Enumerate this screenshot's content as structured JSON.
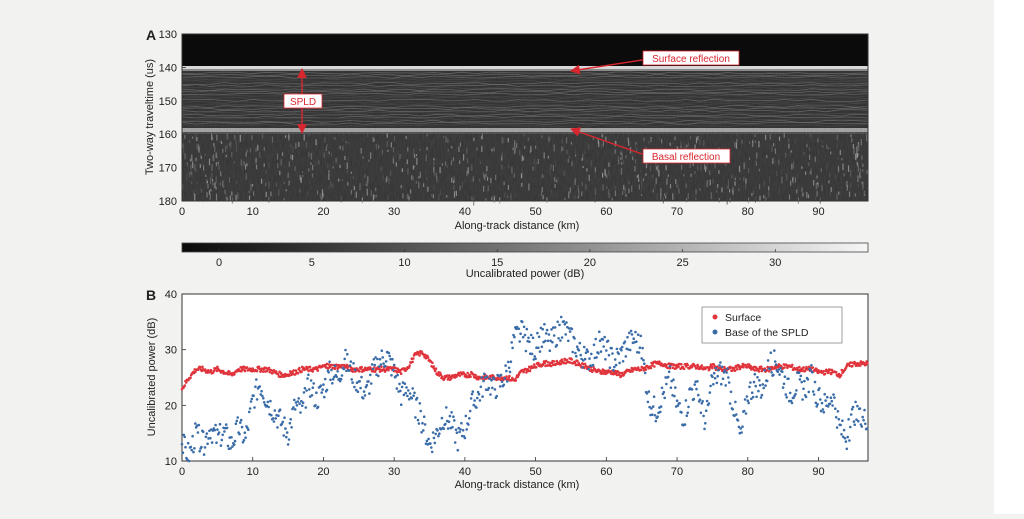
{
  "figure": {
    "panel_a": {
      "letter": "A",
      "type": "heatmap",
      "ylabel": "Two-way traveltime (us)",
      "xlabel": "Along-track distance (km)",
      "x_ticks": [
        0,
        10,
        20,
        30,
        40,
        50,
        60,
        70,
        80,
        90
      ],
      "y_ticks": [
        130,
        140,
        150,
        160,
        170,
        180
      ],
      "xlim": [
        0,
        97
      ],
      "ylim": [
        130,
        180
      ],
      "surface_time": 141,
      "basal_time": 159,
      "annotations": {
        "surface": "Surface reflection",
        "basal": "Basal reflection",
        "spld": "SPLD"
      },
      "annotation_color": "#d8262e"
    },
    "colorbar": {
      "label": "Uncalibrated power (dB)",
      "ticks": [
        0,
        5,
        10,
        15,
        20,
        25,
        30
      ],
      "range": [
        -2,
        35
      ]
    },
    "panel_b": {
      "letter": "B",
      "type": "scatter",
      "xlabel": "Along-track distance (km)",
      "ylabel": "Uncalibrated power (dB)",
      "x_ticks": [
        0,
        10,
        20,
        30,
        40,
        50,
        60,
        70,
        80,
        90
      ],
      "y_ticks": [
        10,
        20,
        30,
        40
      ],
      "xlim": [
        0,
        97
      ],
      "ylim": [
        10,
        40
      ],
      "legend": [
        {
          "label": "Surface",
          "color": "#e0343c"
        },
        {
          "label": "Base of the SPLD",
          "color": "#3a6ca8"
        }
      ]
    }
  },
  "chart_data": [
    {
      "type": "heatmap",
      "title": "",
      "xlabel": "Along-track distance (km)",
      "ylabel": "Two-way traveltime (us)",
      "xlim": [
        0,
        97
      ],
      "ylim": [
        130,
        180
      ],
      "features": [
        {
          "name": "Surface reflection",
          "time_us": 141
        },
        {
          "name": "Basal reflection",
          "time_us": 159
        }
      ],
      "colorbar": {
        "label": "Uncalibrated power (dB)",
        "range": [
          -2,
          35
        ]
      }
    },
    {
      "type": "scatter",
      "xlabel": "Along-track distance (km)",
      "ylabel": "Uncalibrated power (dB)",
      "xlim": [
        0,
        97
      ],
      "ylim": [
        10,
        40
      ],
      "series": [
        {
          "name": "Surface",
          "color": "#e0343c",
          "x": [
            0,
            1,
            2,
            3,
            4,
            5,
            6,
            7,
            8,
            9,
            10,
            11,
            12,
            13,
            14,
            15,
            16,
            17,
            18,
            19,
            20,
            21,
            22,
            23,
            24,
            25,
            26,
            27,
            28,
            29,
            30,
            31,
            32,
            33,
            34,
            35,
            36,
            37,
            38,
            39,
            40,
            41,
            42,
            43,
            44,
            45,
            46,
            47,
            48,
            49,
            50,
            51,
            52,
            53,
            54,
            55,
            56,
            57,
            58,
            59,
            60,
            61,
            62,
            63,
            64,
            65,
            66,
            67,
            68,
            69,
            70,
            71,
            72,
            73,
            74,
            75,
            76,
            77,
            78,
            79,
            80,
            81,
            82,
            83,
            84,
            85,
            86,
            87,
            88,
            89,
            90,
            91,
            92,
            93,
            94,
            95,
            96,
            97
          ],
          "values": [
            23,
            25,
            26.5,
            26.5,
            26,
            26.5,
            26,
            25.5,
            26.5,
            26.5,
            26.5,
            26.5,
            26.5,
            26,
            25.5,
            25.5,
            26,
            26.5,
            26.5,
            26.5,
            27,
            27,
            27,
            27,
            26.5,
            26.5,
            26.5,
            26.5,
            26.5,
            26.5,
            26.5,
            26,
            27,
            29,
            29.5,
            28,
            26,
            25,
            25,
            25.5,
            25.5,
            25.5,
            25,
            25,
            25,
            25,
            25,
            24.5,
            26,
            26.5,
            27,
            27.5,
            27.5,
            27.5,
            28,
            28,
            27.5,
            27,
            26.5,
            26,
            26,
            26,
            25.5,
            26,
            26.5,
            26.5,
            27,
            27.5,
            27.5,
            27,
            27,
            27,
            27,
            27,
            26.5,
            27,
            26.5,
            26.5,
            26.5,
            27,
            27,
            26.5,
            26.5,
            26.5,
            27,
            27,
            27,
            26.5,
            26.5,
            26.5,
            26,
            26,
            26,
            25.5,
            27,
            27.5,
            27.5,
            27.5
          ]
        },
        {
          "name": "Base of the SPLD",
          "color": "#3a6ca8",
          "x": [
            0,
            1,
            2,
            3,
            4,
            5,
            6,
            7,
            8,
            9,
            10,
            11,
            12,
            13,
            14,
            15,
            16,
            17,
            18,
            19,
            20,
            21,
            22,
            23,
            24,
            25,
            26,
            27,
            28,
            29,
            30,
            31,
            32,
            33,
            34,
            35,
            36,
            37,
            38,
            39,
            40,
            41,
            42,
            43,
            44,
            45,
            46,
            47,
            48,
            49,
            50,
            51,
            52,
            53,
            54,
            55,
            56,
            57,
            58,
            59,
            60,
            61,
            62,
            63,
            64,
            65,
            66,
            67,
            68,
            69,
            70,
            71,
            72,
            73,
            74,
            75,
            76,
            77,
            78,
            79,
            80,
            81,
            82,
            83,
            84,
            85,
            86,
            87,
            88,
            89,
            90,
            91,
            92,
            93,
            94,
            95,
            96,
            97
          ],
          "values": [
            13,
            11,
            15,
            13,
            16,
            14,
            15,
            13,
            16,
            14,
            21,
            24,
            21,
            19,
            17,
            15,
            20,
            19,
            24,
            21,
            23,
            26,
            25,
            28,
            26,
            24,
            22,
            26,
            28,
            29,
            26,
            22,
            23,
            20,
            17,
            13,
            15,
            18,
            17,
            14,
            16,
            20,
            22,
            25,
            23,
            24,
            26,
            32,
            33,
            31,
            30,
            33,
            31,
            33,
            34,
            32,
            30,
            28,
            29,
            31,
            30,
            28,
            29,
            31,
            32,
            30,
            21,
            19,
            22,
            25,
            20,
            18,
            23,
            22,
            17,
            24,
            26,
            25,
            20,
            14,
            22,
            24,
            23,
            27,
            28,
            25,
            22,
            24,
            23,
            25,
            21,
            20,
            22,
            16,
            14,
            19,
            17,
            18
          ]
        }
      ]
    }
  ]
}
